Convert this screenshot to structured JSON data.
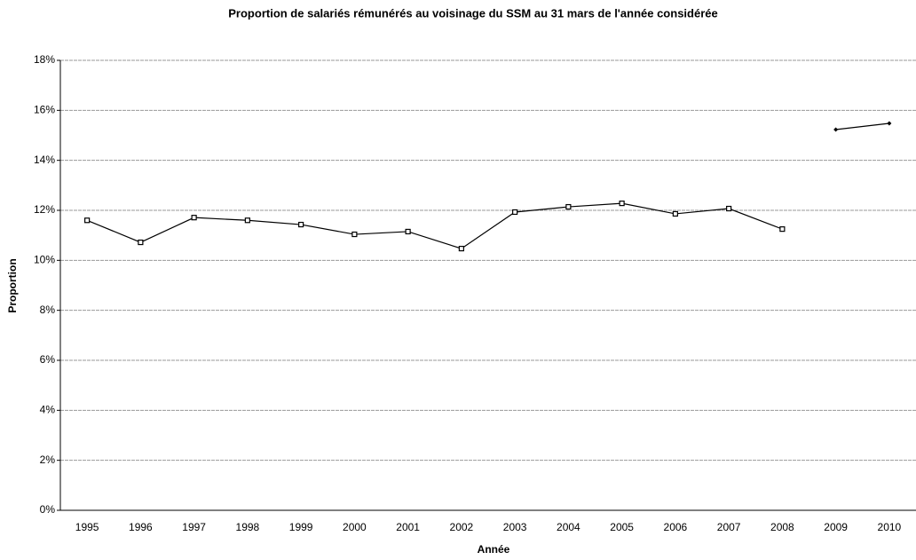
{
  "chart_data": {
    "type": "line",
    "title": "Proportion de salariés rémunérés au voisinage du SSM au 31 mars de l'année considérée",
    "x_label": "Année",
    "y_label": "Proportion",
    "categories": [
      "1995",
      "1996",
      "1997",
      "1998",
      "1999",
      "2000",
      "2001",
      "2002",
      "2003",
      "2004",
      "2005",
      "2006",
      "2007",
      "2008",
      "2009",
      "2010"
    ],
    "series": [
      {
        "color": "#000000",
        "marker": "square",
        "values": [
          11.6,
          10.72,
          11.71,
          11.6,
          11.43,
          11.04,
          11.15,
          10.47,
          11.93,
          12.14,
          12.28,
          11.86,
          12.07,
          11.25,
          null,
          null
        ]
      },
      {
        "color": "#000000",
        "marker": "diamond",
        "values": [
          null,
          null,
          null,
          null,
          null,
          null,
          null,
          null,
          null,
          null,
          null,
          null,
          null,
          null,
          15.23,
          15.48
        ]
      }
    ],
    "ylim": [
      0,
      18
    ],
    "yticks": [
      {
        "value": 0,
        "label": "0%"
      },
      {
        "value": 2,
        "label": "2%"
      },
      {
        "value": 4,
        "label": "4%"
      },
      {
        "value": 6,
        "label": "6%"
      },
      {
        "value": 8,
        "label": "8%"
      },
      {
        "value": 10,
        "label": "10%"
      },
      {
        "value": 12,
        "label": "12%"
      },
      {
        "value": 14,
        "label": "14%"
      },
      {
        "value": 16,
        "label": "16%"
      },
      {
        "value": 18,
        "label": "18%"
      }
    ],
    "grid": true
  }
}
